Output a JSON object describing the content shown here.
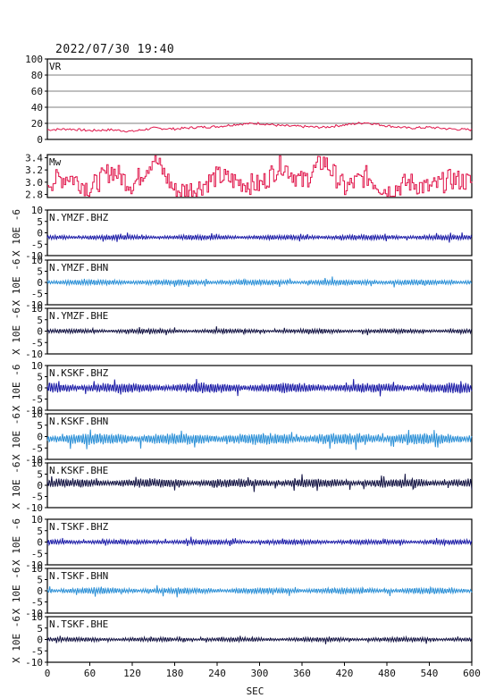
{
  "title": "2022/07/30 19:40",
  "xlabel": "SEC",
  "x_ticks": [
    "0",
    "60",
    "120",
    "180",
    "240",
    "300",
    "360",
    "420",
    "480",
    "540",
    "600"
  ],
  "colors": {
    "frame": "#000000",
    "vr_line": "#e0154a",
    "mw_line": "#e0154a",
    "bhz": "#1a1aa6",
    "bhn": "#2a8fd6",
    "bhe": "#101040"
  },
  "chart_data": [
    {
      "type": "line",
      "label": "VR",
      "ylim": [
        0,
        100
      ],
      "y_ticks": [
        "0",
        "20",
        "40",
        "60",
        "80",
        "100"
      ],
      "grid": true,
      "x": [
        0,
        30,
        60,
        90,
        120,
        150,
        180,
        210,
        240,
        270,
        300,
        330,
        360,
        390,
        420,
        450,
        480,
        510,
        540,
        570,
        600
      ],
      "values": [
        12,
        13,
        11,
        12,
        10,
        14,
        13,
        15,
        16,
        19,
        20,
        17,
        16,
        15,
        18,
        21,
        17,
        14,
        15,
        13,
        12
      ]
    },
    {
      "type": "line",
      "label": "Mw",
      "ylim": [
        2.75,
        3.45
      ],
      "y_ticks": [
        "2.8",
        "3.0",
        "3.2",
        "3.4"
      ],
      "x": [
        0,
        30,
        60,
        90,
        120,
        150,
        180,
        210,
        240,
        270,
        300,
        330,
        360,
        390,
        420,
        450,
        480,
        510,
        540,
        570,
        600
      ],
      "values": [
        3.0,
        3.1,
        2.9,
        3.2,
        2.95,
        3.4,
        2.85,
        2.9,
        3.1,
        3.0,
        2.95,
        3.3,
        3.0,
        3.35,
        2.9,
        3.1,
        2.85,
        3.0,
        2.9,
        3.05,
        3.0
      ]
    },
    {
      "type": "line",
      "label": "N.YMZF.BHZ",
      "ylim": [
        -10,
        10
      ],
      "y_ticks": [
        "-10",
        "-5",
        "0",
        "5",
        "10"
      ],
      "ylabel": "X 10E -6",
      "offset": -2,
      "amplitude": 0.8,
      "color_key": "bhz"
    },
    {
      "type": "line",
      "label": "N.YMZF.BHN",
      "ylim": [
        -10,
        10
      ],
      "y_ticks": [
        "-10",
        "-5",
        "0",
        "5",
        "10"
      ],
      "ylabel": "X 10E -6",
      "offset": 0,
      "amplitude": 0.9,
      "color_key": "bhn"
    },
    {
      "type": "line",
      "label": "N.YMZF.BHE",
      "ylim": [
        -10,
        10
      ],
      "y_ticks": [
        "-10",
        "-5",
        "0",
        "5",
        "10"
      ],
      "ylabel": "X 10E -6",
      "offset": 0,
      "amplitude": 0.7,
      "color_key": "bhe"
    },
    {
      "type": "line",
      "label": "N.KSKF.BHZ",
      "ylim": [
        -10,
        10
      ],
      "y_ticks": [
        "-10",
        "-5",
        "0",
        "5",
        "10"
      ],
      "ylabel": "X 10E -6",
      "offset": 0,
      "amplitude": 1.6,
      "color_key": "bhz"
    },
    {
      "type": "line",
      "label": "N.KSKF.BHN",
      "ylim": [
        -10,
        10
      ],
      "y_ticks": [
        "-10",
        "-5",
        "0",
        "5",
        "10"
      ],
      "ylabel": "X 10E -6",
      "offset": -1,
      "amplitude": 1.8,
      "color_key": "bhn"
    },
    {
      "type": "line",
      "label": "N.KSKF.BHE",
      "ylim": [
        -10,
        10
      ],
      "y_ticks": [
        "-10",
        "-5",
        "0",
        "5",
        "10"
      ],
      "ylabel": "X 10E -6",
      "offset": 1,
      "amplitude": 1.4,
      "color_key": "bhe"
    },
    {
      "type": "line",
      "label": "N.TSKF.BHZ",
      "ylim": [
        -10,
        10
      ],
      "y_ticks": [
        "-10",
        "-5",
        "0",
        "5",
        "10"
      ],
      "ylabel": "X 10E -6",
      "offset": 0,
      "amplitude": 0.8,
      "color_key": "bhz"
    },
    {
      "type": "line",
      "label": "N.TSKF.BHN",
      "ylim": [
        -10,
        10
      ],
      "y_ticks": [
        "-10",
        "-5",
        "0",
        "5",
        "10"
      ],
      "ylabel": "X 10E -6",
      "offset": 0,
      "amplitude": 1.0,
      "color_key": "bhn"
    },
    {
      "type": "line",
      "label": "N.TSKF.BHE",
      "ylim": [
        -10,
        10
      ],
      "y_ticks": [
        "-10",
        "-5",
        "0",
        "5",
        "10"
      ],
      "ylabel": "X 10E -6",
      "offset": 0,
      "amplitude": 0.7,
      "color_key": "bhe"
    }
  ]
}
